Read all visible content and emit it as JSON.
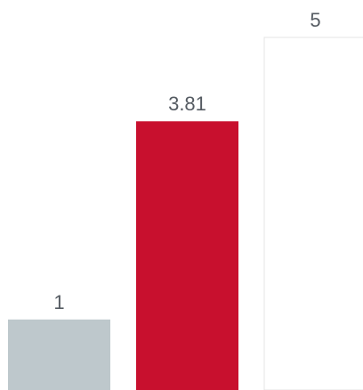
{
  "chart_data": {
    "type": "bar",
    "categories": [
      "",
      "",
      ""
    ],
    "values": [
      1,
      3.81,
      5
    ],
    "value_labels": [
      "1",
      "3.81",
      "5"
    ],
    "colors": [
      "#bec8cc",
      "#c8102e",
      "#ffffff"
    ],
    "bar_outline": [
      "",
      "",
      "#e4e4e4"
    ],
    "ylim": [
      0,
      5
    ],
    "grid": false,
    "legend": "none",
    "title": "",
    "xlabel": "",
    "ylabel": ""
  }
}
